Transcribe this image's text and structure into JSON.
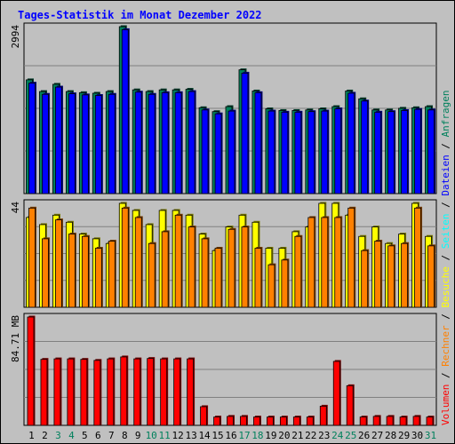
{
  "chart_data": {
    "type": "bar",
    "title": "Tages-Statistik im Monat Dezember 2022",
    "categories": [
      "1",
      "2",
      "3",
      "4",
      "5",
      "6",
      "7",
      "8",
      "9",
      "10",
      "11",
      "12",
      "13",
      "14",
      "15",
      "16",
      "17",
      "18",
      "19",
      "20",
      "21",
      "22",
      "23",
      "24",
      "25",
      "26",
      "27",
      "28",
      "29",
      "30",
      "31"
    ],
    "weekend_days": [
      "3",
      "4",
      "10",
      "11",
      "17",
      "18",
      "24",
      "25",
      "31"
    ],
    "panels": [
      {
        "id": "requests",
        "ymax_label": "2994",
        "ymax": 2994,
        "series": [
          {
            "name": "Anfragen",
            "color": "#00805c",
            "values": [
              2040,
              1830,
              1960,
              1830,
              1810,
              1800,
              1830,
              2994,
              1860,
              1830,
              1860,
              1860,
              1870,
              1540,
              1470,
              1560,
              2220,
              1840,
              1520,
              1490,
              1490,
              1500,
              1520,
              1560,
              1840,
              1700,
              1500,
              1500,
              1530,
              1540,
              1560
            ]
          },
          {
            "name": "Dateien",
            "color": "#0000ff",
            "values": [
              1980,
              1780,
              1910,
              1790,
              1770,
              1760,
              1780,
              2940,
              1820,
              1780,
              1810,
              1810,
              1830,
              1500,
              1430,
              1480,
              2160,
              1810,
              1480,
              1460,
              1460,
              1470,
              1480,
              1520,
              1800,
              1660,
              1460,
              1470,
              1490,
              1510,
              1500
            ]
          }
        ]
      },
      {
        "id": "visits",
        "ymax_label": "44",
        "ymax": 44,
        "series": [
          {
            "name": "Seiten",
            "color": "#00ffff",
            "values": []
          },
          {
            "name": "Besuche",
            "color": "#ffff00",
            "values": [
              38,
              35,
              39,
              36,
              31,
              29,
              27,
              44,
              41,
              35,
              41,
              41,
              39,
              31,
              24,
              34,
              39,
              36,
              25,
              25,
              32,
              34,
              44,
              44,
              39,
              30,
              34,
              27,
              31,
              44,
              30
            ]
          },
          {
            "name": "Rechner",
            "color": "#ff8000",
            "values": [
              42,
              29,
              37,
              31,
              30,
              25,
              28,
              42,
              38,
              27,
              32,
              39,
              34,
              29,
              25,
              33,
              34,
              25,
              18,
              20,
              30,
              38,
              38,
              38,
              42,
              24,
              28,
              26,
              27,
              42,
              26
            ]
          }
        ]
      },
      {
        "id": "volume",
        "ymax_label": "84.71 MB",
        "ymax": 84.71,
        "series": [
          {
            "name": "Volumen",
            "color": "#ff0000",
            "values": [
              84.71,
              51.6,
              52.0,
              52.0,
              51.6,
              50.8,
              52.0,
              53.5,
              52.0,
              52.3,
              52.0,
              52.0,
              52.0,
              14.6,
              6.5,
              7.0,
              7.0,
              6.5,
              6.5,
              6.5,
              6.5,
              6.5,
              15.0,
              50.0,
              31.0,
              6.5,
              7.0,
              7.0,
              6.5,
              7.0,
              6.5
            ]
          }
        ]
      }
    ],
    "legend": {
      "placement": "right-vertical",
      "items": [
        {
          "label": "Volumen",
          "color": "#ff0000"
        },
        {
          "label": "Rechner",
          "color": "#ff8000"
        },
        {
          "label": "Besuche",
          "color": "#ffff00"
        },
        {
          "label": "Seiten",
          "color": "#00ffff"
        },
        {
          "label": "Dateien",
          "color": "#0000ff"
        },
        {
          "label": "Anfragen",
          "color": "#00805c"
        }
      ],
      "separator": " / "
    },
    "grid": true
  }
}
